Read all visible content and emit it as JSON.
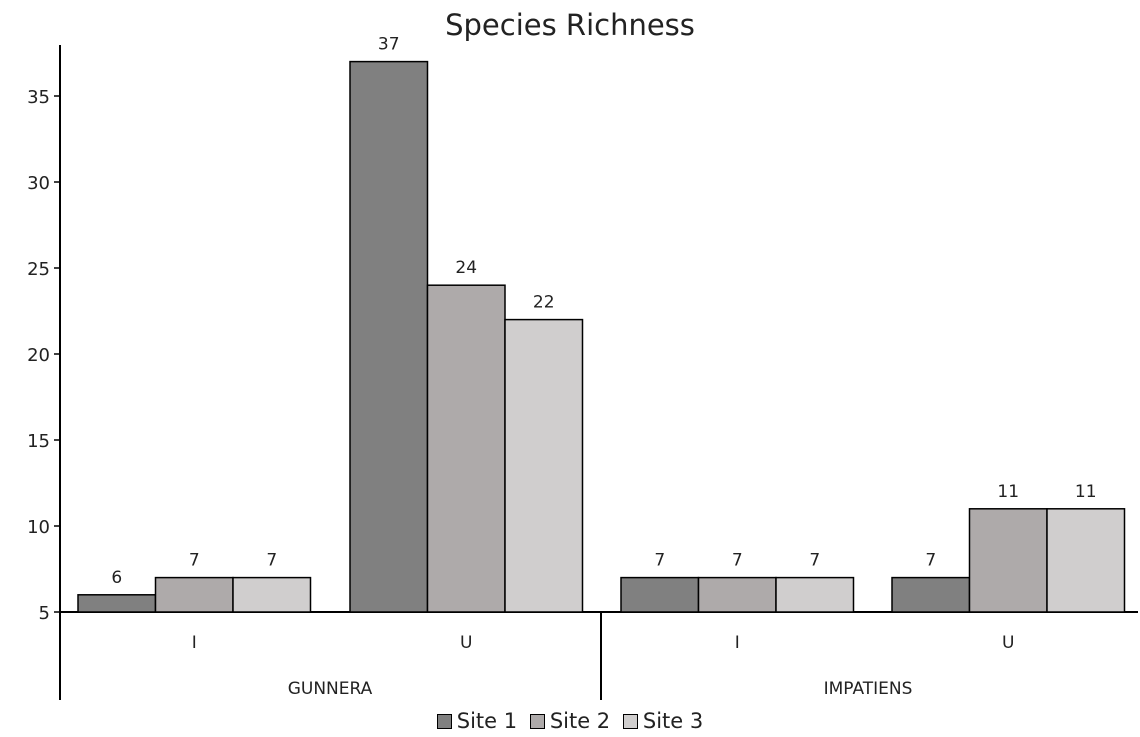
{
  "chart_data": {
    "type": "bar",
    "title": "Species Richness",
    "xlabel": "",
    "ylabel": "",
    "ylim": [
      5,
      38
    ],
    "yticks": [
      5,
      10,
      15,
      20,
      25,
      30,
      35
    ],
    "grid": false,
    "legend_position": "bottom",
    "groups": [
      {
        "label": "GUNNERA",
        "categories": [
          "I",
          "U"
        ]
      },
      {
        "label": "IMPATIENS",
        "categories": [
          "I",
          "U"
        ]
      }
    ],
    "categories": [
      "I",
      "U",
      "I",
      "U"
    ],
    "series": [
      {
        "name": "Site 1",
        "color": "#808080",
        "values": [
          6,
          37,
          7,
          7
        ]
      },
      {
        "name": "Site 2",
        "color": "#aeaaaa",
        "values": [
          7,
          24,
          7,
          11
        ]
      },
      {
        "name": "Site 3",
        "color": "#d0cece",
        "values": [
          7,
          22,
          7,
          11
        ]
      }
    ]
  }
}
